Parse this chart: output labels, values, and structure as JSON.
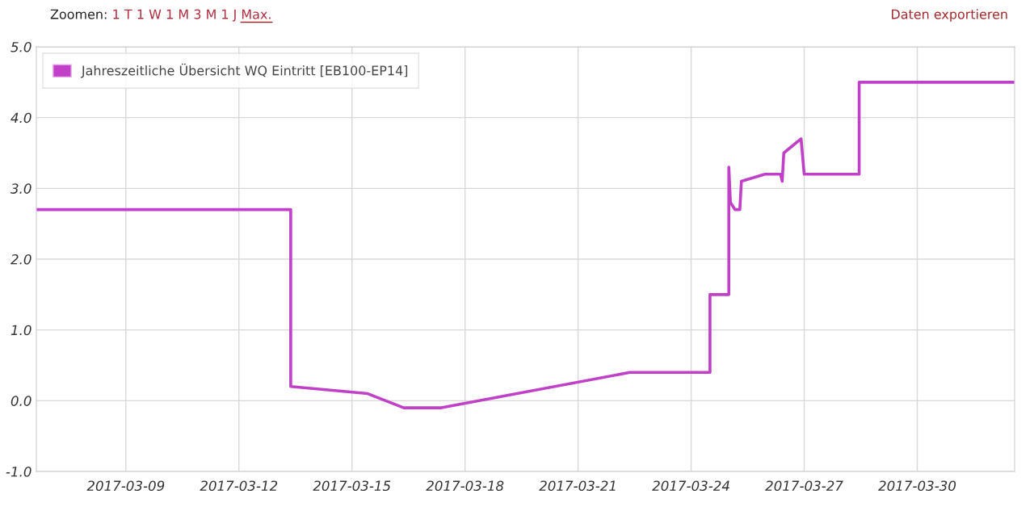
{
  "chart_data": {
    "type": "line",
    "annotations": [
      "Zoomen:",
      "1 T",
      "1 W",
      "1 M",
      "3 M",
      "1 J",
      "Max.",
      "Daten exportieren"
    ],
    "x": [
      "2017-03-06T15:00",
      "2017-03-13T09:00",
      "2017-03-13T09:00",
      "2017-03-15T10:00",
      "2017-03-16T09:00",
      "2017-03-17T09:00",
      "2017-03-22T09:00",
      "2017-03-24T12:00",
      "2017-03-24T12:00",
      "2017-03-25T00:00",
      "2017-03-25T00:00",
      "2017-03-25T01:00",
      "2017-03-25T04:00",
      "2017-03-25T07:00",
      "2017-03-25T08:00",
      "2017-03-25T23:00",
      "2017-03-26T09:00",
      "2017-03-26T10:00",
      "2017-03-26T11:00",
      "2017-03-26T22:00",
      "2017-03-27T00:00",
      "2017-03-28T11:00",
      "2017-03-28T11:00",
      "2017-04-01T14:00"
    ],
    "series": [
      {
        "name": "Jahreszeitliche Übersicht WQ Eintritt [EB100-EP14]",
        "color": "#c040c8",
        "values": [
          2.7,
          2.7,
          0.2,
          0.1,
          -0.1,
          -0.1,
          0.4,
          0.4,
          1.5,
          1.5,
          3.3,
          2.8,
          2.7,
          2.7,
          3.1,
          3.2,
          3.2,
          3.1,
          3.5,
          3.7,
          3.2,
          3.2,
          4.5,
          4.5
        ]
      }
    ],
    "xlim": [
      "2017-03-06T15:00",
      "2017-04-01T14:00"
    ],
    "xticks": [
      "2017-03-09",
      "2017-03-12",
      "2017-03-15",
      "2017-03-18",
      "2017-03-21",
      "2017-03-24",
      "2017-03-27",
      "2017-03-30"
    ],
    "ylim": [
      -1,
      5
    ],
    "yticks": [
      {
        "value": -1,
        "label": "-1.0"
      },
      {
        "value": 0,
        "label": "0.0"
      },
      {
        "value": 1,
        "label": "1.0"
      },
      {
        "value": 2,
        "label": "2.0"
      },
      {
        "value": 3,
        "label": "3.0"
      },
      {
        "value": 4,
        "label": "4.0"
      },
      {
        "value": 5,
        "label": "5.0"
      }
    ],
    "grid": true,
    "legend": "top left",
    "marker": "none",
    "line_style": "solid"
  }
}
